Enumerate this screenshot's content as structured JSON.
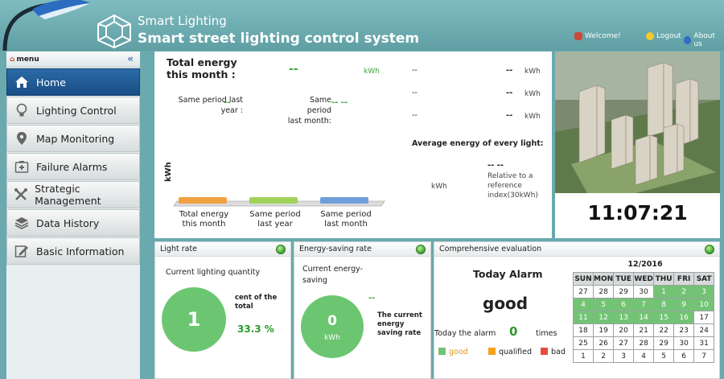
{
  "header": {
    "title": "Smart Lighting",
    "subtitle": "Smart street lighting control system",
    "welcome": "Welcome!",
    "logout": "Logout",
    "about": "About us"
  },
  "sidebar": {
    "menu_label": "menu",
    "collapse": "«",
    "items": [
      {
        "label": "Home",
        "icon": "home-icon"
      },
      {
        "label": "Lighting Control",
        "icon": "bulb-icon"
      },
      {
        "label": "Map Monitoring",
        "icon": "map-pin-icon"
      },
      {
        "label": "Failure Alarms",
        "icon": "first-aid-icon"
      },
      {
        "label": "Strategic Management",
        "icon": "tools-icon"
      },
      {
        "label": "Data History",
        "icon": "layers-icon"
      },
      {
        "label": "Basic Information",
        "icon": "edit-icon"
      }
    ]
  },
  "energy": {
    "total_label_1": "Total energy",
    "total_label_2": "this month :",
    "total_value": "--",
    "total_unit": "kWh",
    "same_year_label_1": "Same period last",
    "same_year_label_2": "year :",
    "same_year_value": "--",
    "same_month_label_1": "Same period",
    "same_month_label_2": "last month:",
    "same_month_value": "-- --",
    "rows": [
      {
        "a": "--",
        "b": "--",
        "unit": "kWh"
      },
      {
        "a": "--",
        "b": "--",
        "unit": "kWh"
      },
      {
        "a": "--",
        "b": "--",
        "unit": "kWh"
      }
    ],
    "average_label": "Average energy of every light:",
    "avg_unit": "kWh",
    "avg_value": "-- --",
    "relative_label": "Relative to a reference index(30kWh)",
    "ylabel": "kWh",
    "bars": [
      {
        "label_1": "Total energy",
        "label_2": "this month",
        "color": "#f2a142"
      },
      {
        "label_1": "Same period",
        "label_2": "last year",
        "color": "#9fd35a"
      },
      {
        "label_1": "Same period",
        "label_2": "last month",
        "color": "#6f9fd8"
      }
    ]
  },
  "clock": "11:07:21",
  "light_rate": {
    "title": "Light rate",
    "label": "Current lighting quantity",
    "value": "1",
    "percent_label": "cent of the total",
    "percent": "33.3 %"
  },
  "saving": {
    "title": "Energy-saving rate",
    "label": "Current energy-saving",
    "value": "0",
    "unit": "kWh",
    "rate_value": "--",
    "rate_label": "The current energy saving rate"
  },
  "evaluation": {
    "title": "Comprehensive evaluation",
    "alarm_title": "Today Alarm",
    "status": "good",
    "alarm_label": "Today the alarm",
    "alarm_count": "0",
    "alarm_unit": "times",
    "legend": [
      {
        "label": "good",
        "color": "#73c375",
        "text_color": "#e6931f"
      },
      {
        "label": "qualified",
        "color": "#f4a21a",
        "text_color": "#333"
      },
      {
        "label": "bad",
        "color": "#e64b3c",
        "text_color": "#333"
      }
    ]
  },
  "calendar": {
    "title": "12/2016",
    "days": [
      "SUN",
      "MON",
      "TUE",
      "WED",
      "THU",
      "FRI",
      "SAT"
    ],
    "weeks": [
      [
        {
          "d": "27",
          "g": false
        },
        {
          "d": "28",
          "g": false
        },
        {
          "d": "29",
          "g": false
        },
        {
          "d": "30",
          "g": false
        },
        {
          "d": "1",
          "g": true
        },
        {
          "d": "2",
          "g": true
        },
        {
          "d": "3",
          "g": true
        }
      ],
      [
        {
          "d": "4",
          "g": true
        },
        {
          "d": "5",
          "g": true
        },
        {
          "d": "6",
          "g": true
        },
        {
          "d": "7",
          "g": true
        },
        {
          "d": "8",
          "g": true
        },
        {
          "d": "9",
          "g": true
        },
        {
          "d": "10",
          "g": true
        }
      ],
      [
        {
          "d": "11",
          "g": true
        },
        {
          "d": "12",
          "g": true
        },
        {
          "d": "13",
          "g": true
        },
        {
          "d": "14",
          "g": true
        },
        {
          "d": "15",
          "g": true
        },
        {
          "d": "16",
          "g": true
        },
        {
          "d": "17",
          "g": false
        }
      ],
      [
        {
          "d": "18",
          "g": false
        },
        {
          "d": "19",
          "g": false
        },
        {
          "d": "20",
          "g": false
        },
        {
          "d": "21",
          "g": false
        },
        {
          "d": "22",
          "g": false
        },
        {
          "d": "23",
          "g": false
        },
        {
          "d": "24",
          "g": false
        }
      ],
      [
        {
          "d": "25",
          "g": false
        },
        {
          "d": "26",
          "g": false
        },
        {
          "d": "27",
          "g": false
        },
        {
          "d": "28",
          "g": false
        },
        {
          "d": "29",
          "g": false
        },
        {
          "d": "30",
          "g": false
        },
        {
          "d": "31",
          "g": false
        }
      ],
      [
        {
          "d": "1",
          "g": false
        },
        {
          "d": "2",
          "g": false
        },
        {
          "d": "3",
          "g": false
        },
        {
          "d": "4",
          "g": false
        },
        {
          "d": "5",
          "g": false
        },
        {
          "d": "6",
          "g": false
        },
        {
          "d": "7",
          "g": false
        }
      ]
    ]
  }
}
